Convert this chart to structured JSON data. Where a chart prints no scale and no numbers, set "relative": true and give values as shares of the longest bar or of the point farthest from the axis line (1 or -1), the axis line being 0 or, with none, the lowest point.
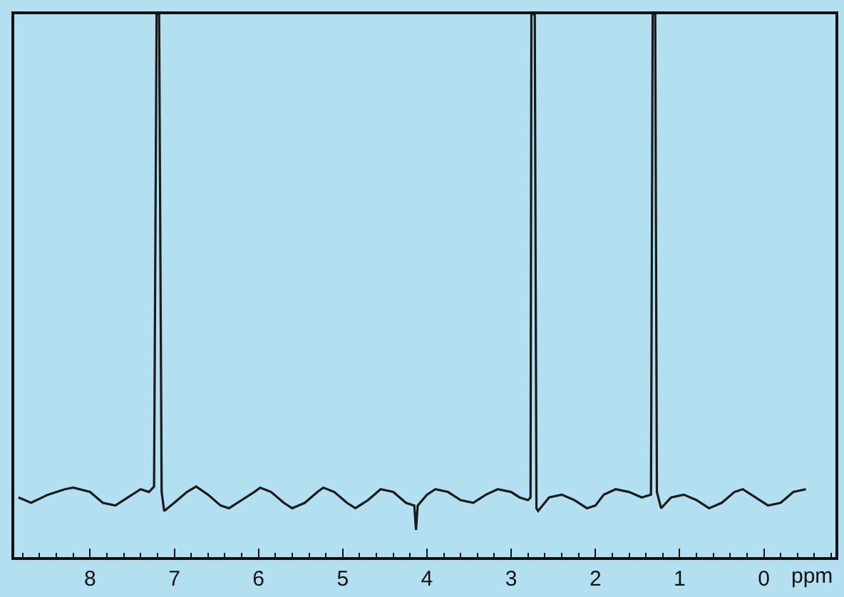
{
  "chart_data": {
    "type": "line",
    "relative": true,
    "xlabel": "ppm",
    "xlim": [
      8.9,
      -0.85
    ],
    "xticks": [
      8,
      7,
      6,
      5,
      4,
      3,
      2,
      1,
      0
    ],
    "grid": false,
    "marker": "none",
    "line_style": "solid",
    "series": [
      {
        "color": "#1a1a1a",
        "x": [
          8.85,
          8.7,
          8.5,
          8.3,
          8.2,
          8.0,
          7.85,
          7.7,
          7.55,
          7.4,
          7.3,
          7.24,
          7.21,
          7.18,
          7.15,
          7.12,
          7.0,
          6.85,
          6.74,
          6.6,
          6.45,
          6.35,
          6.2,
          6.05,
          5.98,
          5.85,
          5.7,
          5.6,
          5.45,
          5.3,
          5.23,
          5.1,
          4.95,
          4.85,
          4.7,
          4.55,
          4.4,
          4.25,
          4.15,
          4.13,
          4.11,
          4.0,
          3.9,
          3.75,
          3.6,
          3.45,
          3.3,
          3.16,
          3.0,
          2.9,
          2.8,
          2.77,
          2.76,
          2.72,
          2.7,
          2.68,
          2.55,
          2.4,
          2.25,
          2.1,
          2.0,
          1.9,
          1.76,
          1.6,
          1.45,
          1.34,
          1.32,
          1.29,
          1.27,
          1.22,
          1.1,
          0.95,
          0.8,
          0.65,
          0.5,
          0.35,
          0.25,
          0.1,
          -0.05,
          -0.2,
          -0.35,
          -0.5
        ],
        "values": [
          0.11,
          0.1,
          0.115,
          0.125,
          0.128,
          0.12,
          0.1,
          0.095,
          0.11,
          0.125,
          0.12,
          0.13,
          1,
          1,
          0.12,
          0.085,
          0.1,
          0.12,
          0.13,
          0.115,
          0.095,
          0.09,
          0.105,
          0.12,
          0.128,
          0.12,
          0.1,
          0.09,
          0.1,
          0.12,
          0.128,
          0.12,
          0.1,
          0.09,
          0.105,
          0.125,
          0.12,
          0.1,
          0.095,
          0.05,
          0.095,
          0.115,
          0.125,
          0.12,
          0.105,
          0.1,
          0.115,
          0.125,
          0.12,
          0.11,
          0.105,
          0.11,
          1,
          1,
          0.09,
          0.085,
          0.11,
          0.115,
          0.105,
          0.09,
          0.095,
          0.115,
          0.125,
          0.12,
          0.11,
          0.115,
          1,
          1,
          0.12,
          0.09,
          0.11,
          0.115,
          0.105,
          0.09,
          0.1,
          0.12,
          0.125,
          0.11,
          0.095,
          0.1,
          0.12,
          0.125
        ]
      }
    ]
  }
}
